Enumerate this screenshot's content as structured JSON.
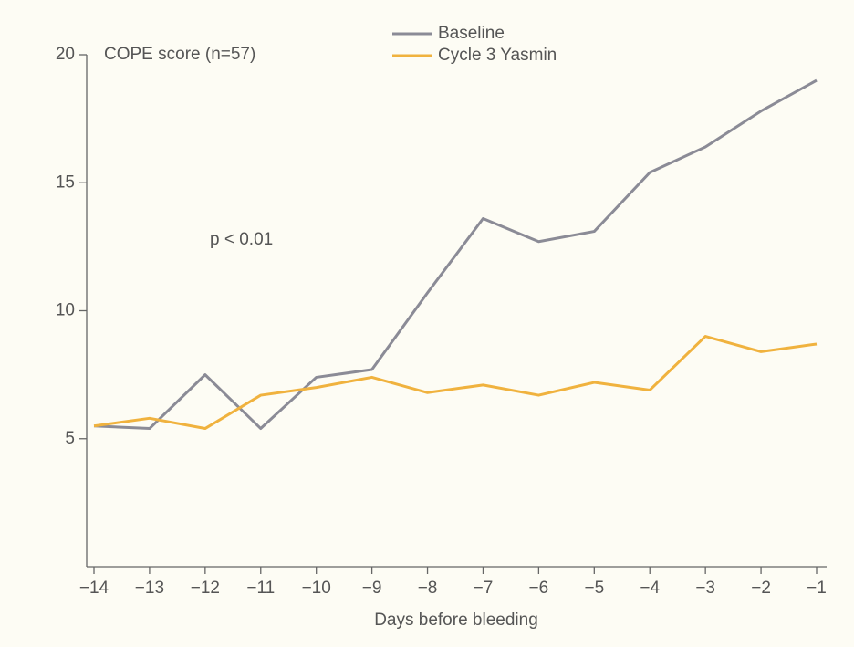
{
  "chart_data": {
    "type": "line",
    "y_label": "COPE score (n=57)",
    "x_label": "Days before bleeding",
    "annotation": "p < 0.01",
    "x": [
      -14,
      -13,
      -12,
      -11,
      -10,
      -9,
      -8,
      -7,
      -6,
      -5,
      -4,
      -3,
      -2,
      -1
    ],
    "series": [
      {
        "name": "Baseline",
        "color": "#8b8b96",
        "values": [
          5.5,
          5.4,
          7.5,
          5.4,
          7.4,
          7.7,
          10.7,
          13.6,
          12.7,
          13.1,
          15.4,
          16.4,
          17.8,
          19.0
        ]
      },
      {
        "name": "Cycle 3 Yasmin",
        "color": "#f0b23e",
        "values": [
          5.5,
          5.8,
          5.4,
          6.7,
          7.0,
          7.4,
          6.8,
          7.1,
          6.7,
          7.2,
          6.9,
          9.0,
          8.4,
          8.7
        ]
      }
    ],
    "xlim": [
      -14,
      -1
    ],
    "ylim": [
      0,
      20
    ],
    "xticks": [
      {
        "value": -14,
        "label": "−14"
      },
      {
        "value": -13,
        "label": "−13"
      },
      {
        "value": -12,
        "label": "−12"
      },
      {
        "value": -11,
        "label": "−11"
      },
      {
        "value": -10,
        "label": "−10"
      },
      {
        "value": -9,
        "label": "−9"
      },
      {
        "value": -8,
        "label": "−8"
      },
      {
        "value": -7,
        "label": "−7"
      },
      {
        "value": -6,
        "label": "−6"
      },
      {
        "value": -5,
        "label": "−5"
      },
      {
        "value": -4,
        "label": "−4"
      },
      {
        "value": -3,
        "label": "−3"
      },
      {
        "value": -2,
        "label": "−2"
      },
      {
        "value": -1,
        "label": "−1"
      }
    ],
    "yticks": [
      5,
      10,
      15,
      20
    ]
  }
}
